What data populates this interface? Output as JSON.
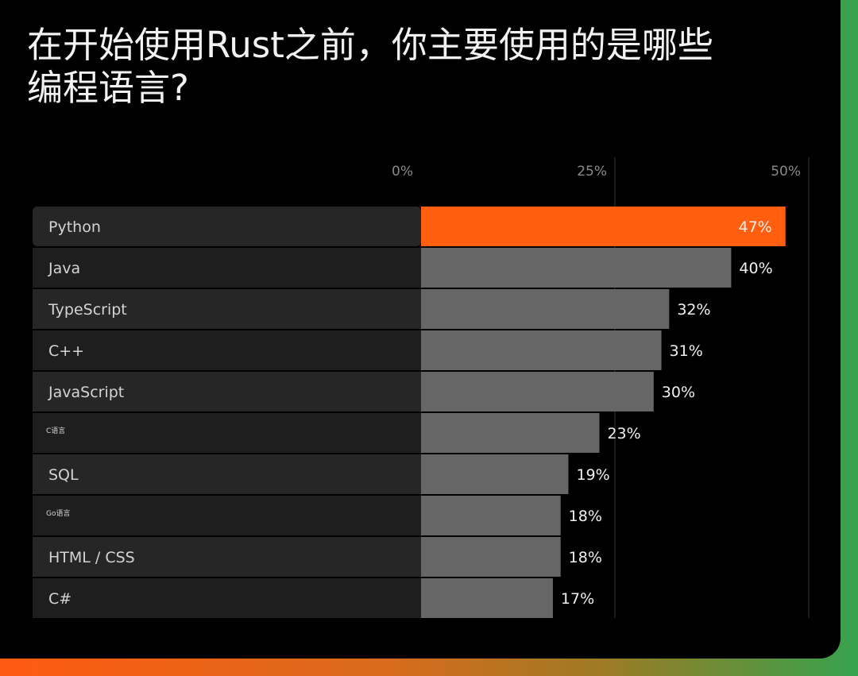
{
  "chart_data": {
    "type": "bar",
    "orientation": "horizontal",
    "title": "在开始使用Rust之前，你主要使用的是哪些编程语言?",
    "x_ticks": [
      "0%",
      "25%",
      "50%"
    ],
    "xlim": [
      0,
      50
    ],
    "grid": true,
    "categories": [
      "Python",
      "Java",
      "TypeScript",
      "C++",
      "JavaScript",
      "C语言",
      "SQL",
      "Go语言",
      "HTML / CSS",
      "C#"
    ],
    "values": [
      47,
      40,
      32,
      31,
      30,
      23,
      19,
      18,
      18,
      17
    ],
    "value_labels": [
      "47%",
      "40%",
      "32%",
      "31%",
      "30%",
      "23%",
      "19%",
      "18%",
      "18%",
      "17%"
    ],
    "colors": {
      "highlight": "#ff5f0f",
      "bar": "#666666",
      "label_row_light": "#262626",
      "label_row_dark": "#1e1e1e",
      "grid": "#333333"
    }
  }
}
